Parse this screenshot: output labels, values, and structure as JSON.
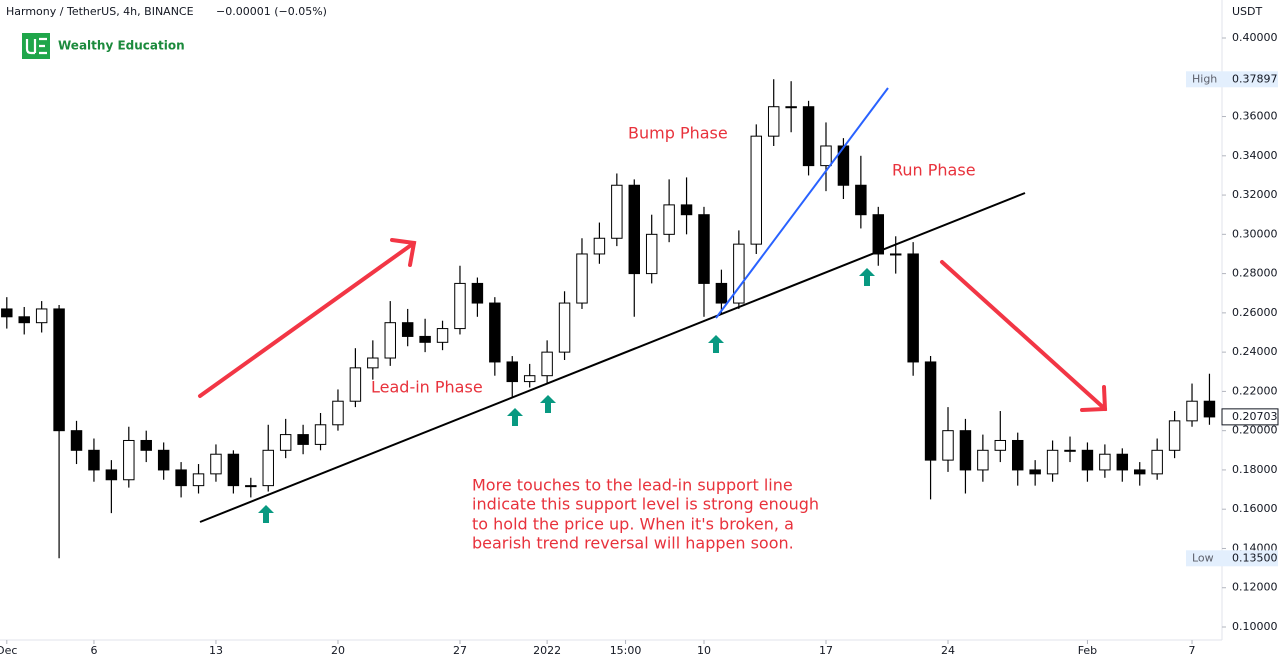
{
  "chart_data": {
    "type": "candlestick",
    "title": "Harmony / TetherUS, 4h, BINANCE",
    "subtitle": "−0.00001 (−0.05%)",
    "brand": "Wealthy Education",
    "y_axis_label": "USDT",
    "ylim": [
      0.1,
      0.4
    ],
    "yticks": [
      {
        "value": 0.4,
        "label": "0.40000"
      },
      {
        "value": 0.38,
        "label": "0.38000"
      },
      {
        "value": 0.36,
        "label": "0.36000"
      },
      {
        "value": 0.34,
        "label": "0.34000"
      },
      {
        "value": 0.32,
        "label": "0.32000"
      },
      {
        "value": 0.3,
        "label": "0.30000"
      },
      {
        "value": 0.28,
        "label": "0.28000"
      },
      {
        "value": 0.26,
        "label": "0.26000"
      },
      {
        "value": 0.24,
        "label": "0.24000"
      },
      {
        "value": 0.22,
        "label": "0.22000"
      },
      {
        "value": 0.2,
        "label": "0.20000"
      },
      {
        "value": 0.18,
        "label": "0.18000"
      },
      {
        "value": 0.16,
        "label": "0.16000"
      },
      {
        "value": 0.14,
        "label": "0.14000"
      },
      {
        "value": 0.12,
        "label": "0.12000"
      },
      {
        "value": 0.1,
        "label": "0.10000"
      }
    ],
    "xlim": [
      -0.39,
      69.72
    ],
    "xticks": [
      {
        "value": 0,
        "label": "Dec"
      },
      {
        "value": 5,
        "label": "6"
      },
      {
        "value": 12,
        "label": "13"
      },
      {
        "value": 19,
        "label": "20"
      },
      {
        "value": 26,
        "label": "27"
      },
      {
        "value": 31,
        "label": "2022"
      },
      {
        "value": 35.5,
        "label": "15:00"
      },
      {
        "value": 40,
        "label": "10"
      },
      {
        "value": 47,
        "label": "17"
      },
      {
        "value": 54,
        "label": "24"
      },
      {
        "value": 62,
        "label": "Feb"
      },
      {
        "value": 68,
        "label": "7"
      }
    ],
    "up_color": "#ffffff",
    "down_color": "#000000",
    "x": [
      0,
      1,
      2,
      3,
      4,
      5,
      6,
      7,
      8,
      9,
      10,
      11,
      12,
      13,
      14,
      15,
      16,
      17,
      18,
      19,
      20,
      21,
      22,
      23,
      24,
      25,
      26,
      27,
      28,
      29,
      30,
      31,
      32,
      33,
      34,
      35,
      36,
      37,
      38,
      39,
      40,
      41,
      42,
      43,
      44,
      45,
      46,
      47,
      48,
      49,
      50,
      51,
      52,
      53,
      54,
      55,
      56,
      57,
      58,
      59,
      60,
      61,
      62,
      63,
      64,
      65,
      66,
      67,
      68,
      69
    ],
    "candles": [
      [
        0.262,
        0.268,
        0.252,
        0.258
      ],
      [
        0.258,
        0.263,
        0.249,
        0.255
      ],
      [
        0.255,
        0.266,
        0.25,
        0.262
      ],
      [
        0.262,
        0.264,
        0.135,
        0.2
      ],
      [
        0.2,
        0.205,
        0.183,
        0.19
      ],
      [
        0.19,
        0.196,
        0.174,
        0.18
      ],
      [
        0.18,
        0.185,
        0.158,
        0.175
      ],
      [
        0.175,
        0.202,
        0.171,
        0.195
      ],
      [
        0.195,
        0.2,
        0.184,
        0.19
      ],
      [
        0.19,
        0.194,
        0.175,
        0.18
      ],
      [
        0.18,
        0.184,
        0.166,
        0.172
      ],
      [
        0.172,
        0.183,
        0.168,
        0.178
      ],
      [
        0.178,
        0.193,
        0.174,
        0.188
      ],
      [
        0.188,
        0.19,
        0.168,
        0.172
      ],
      [
        0.172,
        0.176,
        0.166,
        0.172
      ],
      [
        0.172,
        0.203,
        0.169,
        0.19
      ],
      [
        0.19,
        0.206,
        0.186,
        0.198
      ],
      [
        0.198,
        0.203,
        0.188,
        0.193
      ],
      [
        0.193,
        0.209,
        0.19,
        0.203
      ],
      [
        0.203,
        0.221,
        0.2,
        0.215
      ],
      [
        0.215,
        0.242,
        0.212,
        0.232
      ],
      [
        0.232,
        0.246,
        0.226,
        0.237
      ],
      [
        0.237,
        0.266,
        0.233,
        0.255
      ],
      [
        0.255,
        0.262,
        0.243,
        0.248
      ],
      [
        0.248,
        0.257,
        0.24,
        0.245
      ],
      [
        0.245,
        0.256,
        0.241,
        0.252
      ],
      [
        0.252,
        0.284,
        0.249,
        0.275
      ],
      [
        0.275,
        0.278,
        0.258,
        0.265
      ],
      [
        0.265,
        0.268,
        0.228,
        0.235
      ],
      [
        0.235,
        0.238,
        0.217,
        0.225
      ],
      [
        0.225,
        0.234,
        0.222,
        0.228
      ],
      [
        0.228,
        0.246,
        0.224,
        0.24
      ],
      [
        0.24,
        0.271,
        0.236,
        0.265
      ],
      [
        0.265,
        0.298,
        0.262,
        0.29
      ],
      [
        0.29,
        0.306,
        0.285,
        0.298
      ],
      [
        0.298,
        0.331,
        0.294,
        0.325
      ],
      [
        0.325,
        0.328,
        0.258,
        0.28
      ],
      [
        0.28,
        0.31,
        0.275,
        0.3
      ],
      [
        0.3,
        0.328,
        0.296,
        0.315
      ],
      [
        0.315,
        0.329,
        0.3,
        0.31
      ],
      [
        0.31,
        0.314,
        0.258,
        0.275
      ],
      [
        0.275,
        0.282,
        0.259,
        0.265
      ],
      [
        0.265,
        0.302,
        0.262,
        0.295
      ],
      [
        0.295,
        0.356,
        0.29,
        0.35
      ],
      [
        0.35,
        0.379,
        0.345,
        0.365
      ],
      [
        0.365,
        0.378,
        0.352,
        0.365
      ],
      [
        0.365,
        0.368,
        0.33,
        0.335
      ],
      [
        0.335,
        0.357,
        0.322,
        0.345
      ],
      [
        0.345,
        0.349,
        0.318,
        0.325
      ],
      [
        0.325,
        0.34,
        0.303,
        0.31
      ],
      [
        0.31,
        0.314,
        0.284,
        0.29
      ],
      [
        0.29,
        0.299,
        0.28,
        0.29
      ],
      [
        0.29,
        0.296,
        0.228,
        0.235
      ],
      [
        0.235,
        0.238,
        0.165,
        0.185
      ],
      [
        0.185,
        0.212,
        0.179,
        0.2
      ],
      [
        0.2,
        0.206,
        0.168,
        0.18
      ],
      [
        0.18,
        0.198,
        0.174,
        0.19
      ],
      [
        0.19,
        0.21,
        0.184,
        0.195
      ],
      [
        0.195,
        0.199,
        0.172,
        0.18
      ],
      [
        0.18,
        0.185,
        0.172,
        0.178
      ],
      [
        0.178,
        0.195,
        0.174,
        0.19
      ],
      [
        0.19,
        0.197,
        0.184,
        0.19
      ],
      [
        0.19,
        0.194,
        0.174,
        0.18
      ],
      [
        0.18,
        0.193,
        0.176,
        0.188
      ],
      [
        0.188,
        0.191,
        0.174,
        0.18
      ],
      [
        0.18,
        0.184,
        0.172,
        0.178
      ],
      [
        0.178,
        0.196,
        0.175,
        0.19
      ],
      [
        0.19,
        0.21,
        0.186,
        0.205
      ],
      [
        0.205,
        0.224,
        0.202,
        0.215
      ],
      [
        0.215,
        0.229,
        0.203,
        0.207
      ]
    ],
    "price_markers": {
      "names": [
        "High",
        "Low"
      ],
      "values": [
        0.37897,
        0.135
      ],
      "value_labels": [
        "0.37897",
        "0.13500"
      ]
    },
    "last_price": {
      "value": 0.20703,
      "value_label": "0.20703"
    },
    "annotations": {
      "bump": "Bump Phase",
      "run": "Run Phase",
      "lead_in": "Lead-in Phase",
      "note": [
        "More touches to the lead-in support line",
        "indicate this support level is strong enough",
        "to hold the price up. When it's broken, a",
        "bearish trend reversal will happen soon."
      ]
    }
  }
}
